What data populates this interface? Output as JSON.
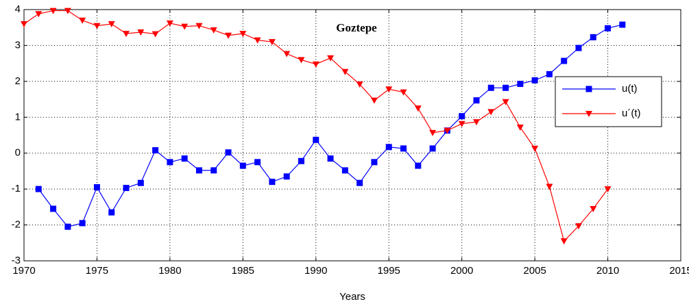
{
  "chart_data": {
    "type": "line",
    "title": "Goztepe",
    "xlabel": "Years",
    "x": [
      1970,
      1971,
      1972,
      1973,
      1974,
      1975,
      1976,
      1977,
      1978,
      1979,
      1980,
      1981,
      1982,
      1983,
      1984,
      1985,
      1986,
      1987,
      1988,
      1989,
      1990,
      1991,
      1992,
      1993,
      1994,
      1995,
      1996,
      1997,
      1998,
      1999,
      2000,
      2001,
      2002,
      2003,
      2004,
      2005,
      2006,
      2007,
      2008,
      2009,
      2010,
      2011
    ],
    "series": [
      {
        "name": "u(t)",
        "color": "#0000ff",
        "marker": "square",
        "values": [
          null,
          -1.0,
          -1.55,
          -2.05,
          -1.95,
          -0.95,
          -1.65,
          -0.97,
          -0.83,
          0.08,
          -0.25,
          -0.15,
          -0.48,
          -0.48,
          0.02,
          -0.35,
          -0.25,
          -0.8,
          -0.65,
          -0.22,
          0.37,
          -0.15,
          -0.48,
          -0.83,
          -0.25,
          0.17,
          0.13,
          -0.35,
          0.13,
          0.63,
          1.03,
          1.47,
          1.82,
          1.82,
          1.93,
          2.03,
          2.2,
          2.57,
          2.93,
          3.23,
          3.48,
          3.58
        ]
      },
      {
        "name": "u´(t)",
        "color": "#ff0000",
        "marker": "triangle-down",
        "values": [
          3.6,
          3.88,
          3.97,
          3.97,
          3.7,
          3.55,
          3.6,
          3.33,
          3.37,
          3.32,
          3.62,
          3.53,
          3.55,
          3.43,
          3.28,
          3.33,
          3.15,
          3.1,
          2.77,
          2.6,
          2.48,
          2.65,
          2.27,
          1.92,
          1.47,
          1.78,
          1.7,
          1.25,
          0.57,
          0.63,
          0.82,
          0.87,
          1.15,
          1.43,
          0.72,
          0.13,
          -0.93,
          -2.45,
          -2.03,
          -1.55,
          -1.0,
          null
        ]
      }
    ],
    "xlim": [
      1970,
      2015
    ],
    "xticks": [
      1970,
      1975,
      1980,
      1985,
      1990,
      1995,
      2000,
      2005,
      2010,
      2015
    ],
    "ylim": [
      -3,
      4
    ],
    "yticks": [
      -3,
      -2,
      -1,
      0,
      1,
      2,
      3,
      4
    ],
    "grid": true,
    "legend_loc": "right"
  }
}
